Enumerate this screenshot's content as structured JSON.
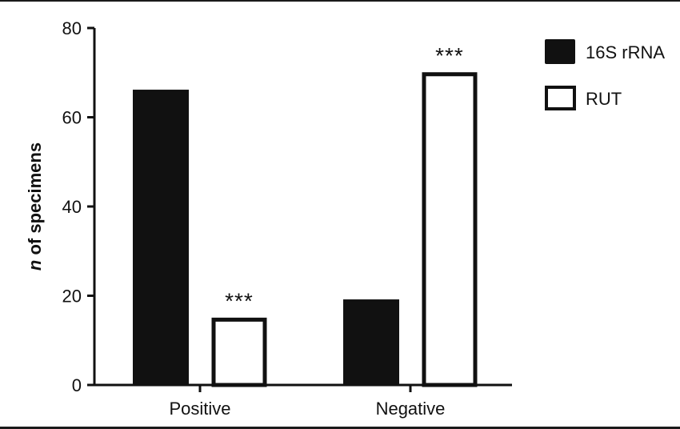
{
  "chart_data": {
    "type": "bar",
    "categories": [
      "Positive",
      "Negative"
    ],
    "series": [
      {
        "name": "16S rRNA",
        "values": [
          66,
          19
        ],
        "color": "#111111",
        "style": "filled"
      },
      {
        "name": "RUT",
        "values": [
          15,
          70
        ],
        "color": "#111111",
        "style": "outline"
      }
    ],
    "yticks": [
      0,
      20,
      40,
      60,
      80
    ],
    "ylim": [
      0,
      80
    ],
    "ylabel_italic": "n",
    "ylabel_rest": " of specimens",
    "xlabel": "",
    "annotations": [
      {
        "category": "Positive",
        "series": "RUT",
        "text": "***"
      },
      {
        "category": "Negative",
        "series": "RUT",
        "text": "***"
      }
    ],
    "legend_position": "top-right",
    "grid": false
  }
}
